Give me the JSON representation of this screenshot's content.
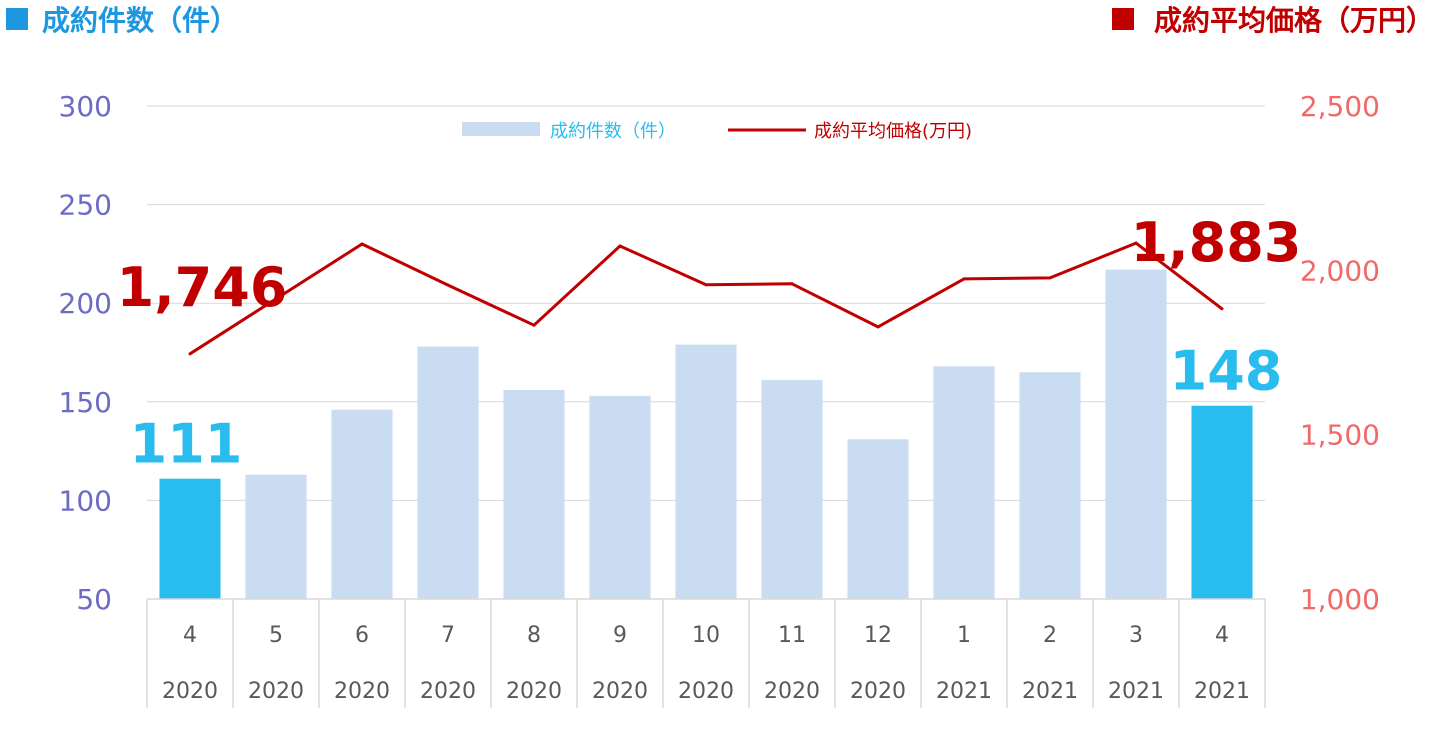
{
  "headers": {
    "left_title": "成約件数（件）",
    "right_title": "成約平均価格（万円）"
  },
  "legend": {
    "bars_label": "成約件数（件）",
    "line_label": "成約平均価格(万円)"
  },
  "colors": {
    "bar": "#C9DCF2",
    "bar_highlight": "#29BDEF",
    "line": "#C00000",
    "left_axis_text": "#6C6CC6",
    "right_axis_text": "#F06A6A",
    "header_left": "#1D97E0",
    "header_right": "#C00000",
    "grid": "#D9D9D9",
    "cat_text": "#595959"
  },
  "chart_data": {
    "type": "bar",
    "categories": [
      "4",
      "5",
      "6",
      "7",
      "8",
      "9",
      "10",
      "11",
      "12",
      "1",
      "2",
      "3",
      "4"
    ],
    "category_years": [
      "2020",
      "2020",
      "2020",
      "2020",
      "2020",
      "2020",
      "2020",
      "2020",
      "2020",
      "2021",
      "2021",
      "2021",
      "2021"
    ],
    "series": [
      {
        "name": "成約件数（件）",
        "type": "bar",
        "axis": "left",
        "values": [
          111,
          113,
          146,
          178,
          156,
          153,
          179,
          161,
          131,
          168,
          165,
          217,
          148
        ],
        "highlight_indices": [
          0,
          12
        ]
      },
      {
        "name": "成約平均価格(万円)",
        "type": "line",
        "axis": "right",
        "values": [
          1746,
          1913,
          2080,
          1955,
          1833,
          2074,
          1956,
          1959,
          1828,
          1974,
          1977,
          2083,
          1883
        ]
      }
    ],
    "y_left": {
      "ylim": [
        50,
        300
      ],
      "ticks": [
        "50",
        "100",
        "150",
        "200",
        "250",
        "300"
      ]
    },
    "y_right": {
      "ylim": [
        1000,
        2500
      ],
      "ticks": [
        "1,000",
        "1,500",
        "2,000",
        "2,500"
      ]
    },
    "data_labels": [
      {
        "series": 0,
        "index": 0,
        "text": "111"
      },
      {
        "series": 0,
        "index": 12,
        "text": "148"
      },
      {
        "series": 1,
        "index": 0,
        "text": "1,746"
      },
      {
        "series": 1,
        "index": 12,
        "text": "1,883"
      }
    ],
    "grid": true,
    "legend_position": "top-center"
  }
}
